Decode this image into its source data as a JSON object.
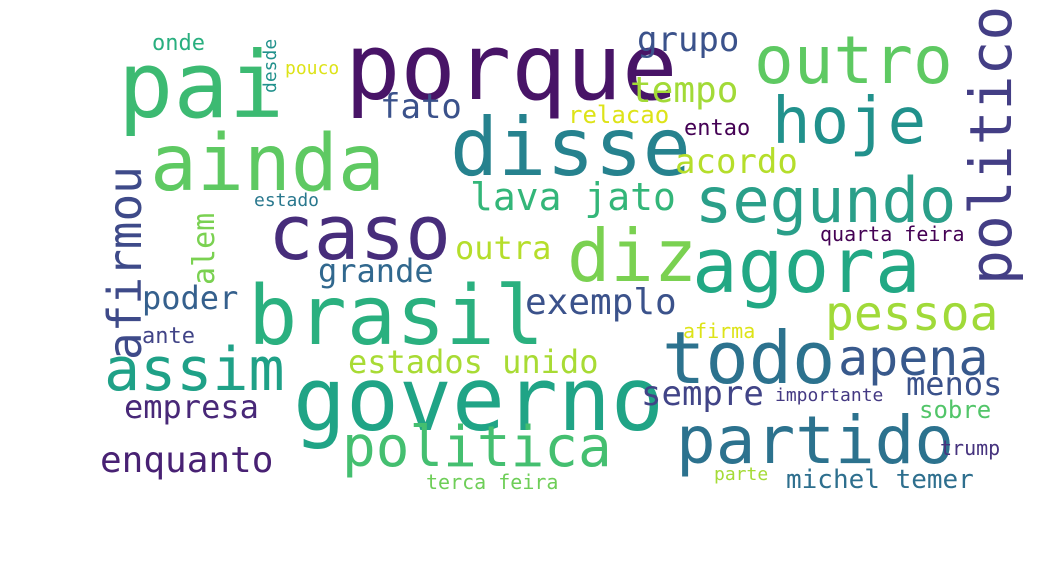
{
  "words": [
    {
      "text": "pai",
      "color": "#3cba72"
    },
    {
      "text": "porque",
      "color": "#481467"
    },
    {
      "text": "outro",
      "color": "#5ec962"
    },
    {
      "text": "grupo",
      "color": "#3b528b"
    },
    {
      "text": "ainda",
      "color": "#5ec962"
    },
    {
      "text": "disse",
      "color": "#26828e"
    },
    {
      "text": "hoje",
      "color": "#21918c"
    },
    {
      "text": "politico",
      "color": "#433e85"
    },
    {
      "text": "caso",
      "color": "#472d7b"
    },
    {
      "text": "segundo",
      "color": "#2a9f89"
    },
    {
      "text": "diz",
      "color": "#7ad151"
    },
    {
      "text": "agora",
      "color": "#22a884"
    },
    {
      "text": "brasil",
      "color": "#2ab07f"
    },
    {
      "text": "todo",
      "color": "#2c728e"
    },
    {
      "text": "apena",
      "color": "#38598c"
    },
    {
      "text": "assim",
      "color": "#1fa187"
    },
    {
      "text": "governo",
      "color": "#20a486"
    },
    {
      "text": "partido",
      "color": "#2c728e"
    },
    {
      "text": "politica",
      "color": "#44bf70"
    },
    {
      "text": "afirmou",
      "color": "#3e4a89"
    },
    {
      "text": "tempo",
      "color": "#a2da37"
    },
    {
      "text": "fato",
      "color": "#3b528b"
    },
    {
      "text": "acordo",
      "color": "#b5de2b"
    },
    {
      "text": "lava jato",
      "color": "#33b679"
    },
    {
      "text": "pessoa",
      "color": "#a0da39"
    },
    {
      "text": "exemplo",
      "color": "#3b528b"
    },
    {
      "text": "grande",
      "color": "#31688e"
    },
    {
      "text": "outra",
      "color": "#b5de2b"
    },
    {
      "text": "poder",
      "color": "#35608d"
    },
    {
      "text": "estados unido",
      "color": "#a8db34"
    },
    {
      "text": "empresa",
      "color": "#482878"
    },
    {
      "text": "enquanto",
      "color": "#482173"
    },
    {
      "text": "sempre",
      "color": "#414487"
    },
    {
      "text": "menos",
      "color": "#3b528b"
    },
    {
      "text": "michel temer",
      "color": "#2e6f8e"
    },
    {
      "text": "alem",
      "color": "#7ad151"
    },
    {
      "text": "onde",
      "color": "#29af7f"
    },
    {
      "text": "desde",
      "color": "#21918c"
    },
    {
      "text": "pouco",
      "color": "#dde318"
    },
    {
      "text": "relacao",
      "color": "#dde318"
    },
    {
      "text": "entao",
      "color": "#440154"
    },
    {
      "text": "estado",
      "color": "#2a788e"
    },
    {
      "text": "quarta feira",
      "color": "#440154"
    },
    {
      "text": "ante",
      "color": "#414487"
    },
    {
      "text": "afirma",
      "color": "#dde318"
    },
    {
      "text": "importante",
      "color": "#443983"
    },
    {
      "text": "sobre",
      "color": "#52c569"
    },
    {
      "text": "trump",
      "color": "#46337e"
    },
    {
      "text": "parte",
      "color": "#a5db36"
    },
    {
      "text": "terca feira",
      "color": "#6ece58"
    }
  ]
}
